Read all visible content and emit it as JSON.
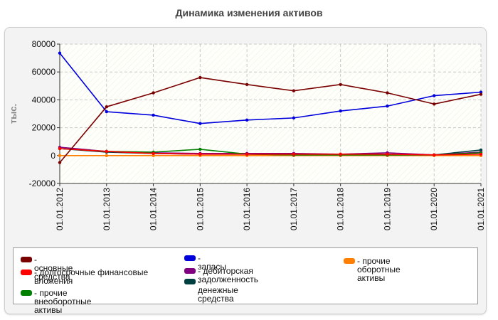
{
  "chart_data": {
    "type": "line",
    "title": "Динамика изменения активов",
    "ylabel": "тыс.",
    "ylim": [
      -20000,
      80000
    ],
    "yticks": [
      -20000,
      0,
      20000,
      40000,
      60000,
      80000
    ],
    "x": [
      "01.01.2012",
      "01.01.2013",
      "01.01.2014",
      "01.01.2015",
      "01.01.2016",
      "01.01.2017",
      "01.01.2018",
      "01.01.2019",
      "01.01.2020",
      "01.01.2021"
    ],
    "legend_placement": "bottom",
    "series": [
      {
        "name": "- основные средства",
        "color": "#7a0000",
        "values": [
          -5000,
          35000,
          45000,
          56000,
          51000,
          46500,
          51000,
          45000,
          37000,
          44000
        ]
      },
      {
        "name": "- долгосрочные финансовые вложения",
        "color": "#ff0000",
        "values": [
          5000,
          3000,
          1500,
          1000,
          1000,
          1000,
          1000,
          1000,
          500,
          1000
        ]
      },
      {
        "name": "- прочие внеоборотные активы",
        "color": "#008000",
        "values": [
          5000,
          3000,
          2500,
          4500,
          1000,
          500,
          500,
          500,
          500,
          2000
        ]
      },
      {
        "name": "- запасы",
        "color": "#0000dd",
        "values": [
          73500,
          31500,
          29000,
          23000,
          25500,
          27000,
          32000,
          35500,
          43000,
          45500
        ]
      },
      {
        "name": "- дебиторская задолженность",
        "color": "#800080",
        "values": [
          6000,
          3000,
          2000,
          1500,
          1500,
          1500,
          1000,
          2000,
          500,
          2500
        ]
      },
      {
        "name": "- денежные средства",
        "color": "#004040",
        "values": [
          5000,
          2500,
          1500,
          1000,
          1000,
          500,
          500,
          500,
          500,
          4000
        ]
      },
      {
        "name": "- прочие оборотные активы",
        "color": "#ff8000",
        "values": [
          0,
          0,
          0,
          0,
          0,
          0,
          0,
          0,
          0,
          0
        ]
      }
    ]
  }
}
